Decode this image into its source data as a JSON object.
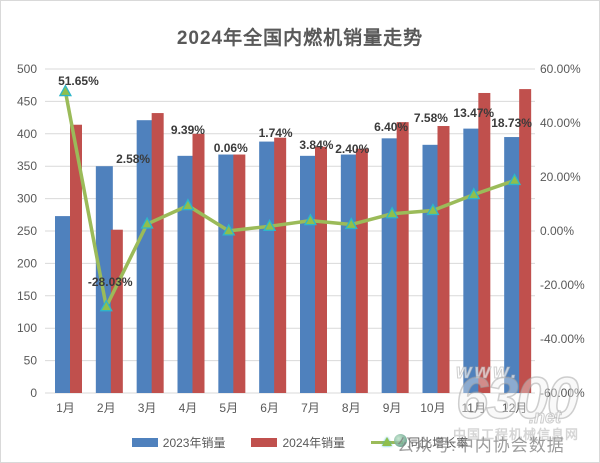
{
  "title": "2024年全国内燃机销量走势",
  "chart_data": {
    "type": "bar",
    "subtype": "bar-line-combo",
    "title": "2024年全国内燃机销量走势",
    "categories": [
      "1月",
      "2月",
      "3月",
      "4月",
      "5月",
      "6月",
      "7月",
      "8月",
      "9月",
      "10月",
      "11月",
      "12月"
    ],
    "series": [
      {
        "name": "2023年销量",
        "type": "bar",
        "axis": "left",
        "color": "#4F81BD",
        "values": [
          273,
          350,
          421,
          366,
          368,
          388,
          366,
          368,
          393,
          383,
          408,
          395
        ]
      },
      {
        "name": "2024年销量",
        "type": "bar",
        "axis": "left",
        "color": "#C0504D",
        "values": [
          414,
          252,
          432,
          400,
          368,
          394,
          380,
          377,
          418,
          412,
          463,
          469
        ]
      },
      {
        "name": "同比增长率",
        "type": "line",
        "axis": "right",
        "color": "#9BBB59",
        "marker": "triangle",
        "marker_fill": "#8FBF4D",
        "marker_border": "#2EB6C9",
        "values": [
          51.65,
          -28.03,
          2.58,
          9.39,
          0.06,
          1.74,
          3.84,
          2.4,
          6.4,
          7.58,
          13.47,
          18.73
        ]
      }
    ],
    "data_labels": [
      "51.65%",
      "-28.03%",
      "2.58%",
      "9.39%",
      "0.06%",
      "1.74%",
      "3.84%",
      "2.40%",
      "6.40%",
      "7.58%",
      "13.47%",
      "18.73%"
    ],
    "left_axis": {
      "min": 0,
      "max": 500,
      "step": 50,
      "ticks": [
        "500",
        "450",
        "400",
        "350",
        "300",
        "250",
        "200",
        "150",
        "100",
        "50",
        "0"
      ]
    },
    "right_axis": {
      "min": -60,
      "max": 60,
      "step": 20,
      "ticks": [
        "60.00%",
        "40.00%",
        "20.00%",
        "0.00%",
        "-20.00%",
        "-40.00%",
        "-60.00%"
      ]
    },
    "grid": true,
    "legend_position": "bottom",
    "grid_color": "#D9D9D9",
    "axis_text_color": "#595959",
    "label_text_color": "#3b3b3b"
  },
  "legend": {
    "items": [
      {
        "label": "2023年销量",
        "color": "#4F81BD",
        "kind": "bar"
      },
      {
        "label": "2024年销量",
        "color": "#C0504D",
        "kind": "bar"
      },
      {
        "label": "同比增长率",
        "color": "#9BBB59",
        "kind": "line"
      }
    ]
  },
  "watermarks": {
    "www": "www.",
    "logo": "6300",
    "net": ".net",
    "site": "中国工程机械信息网",
    "account": "公众号:中内协会数据"
  }
}
